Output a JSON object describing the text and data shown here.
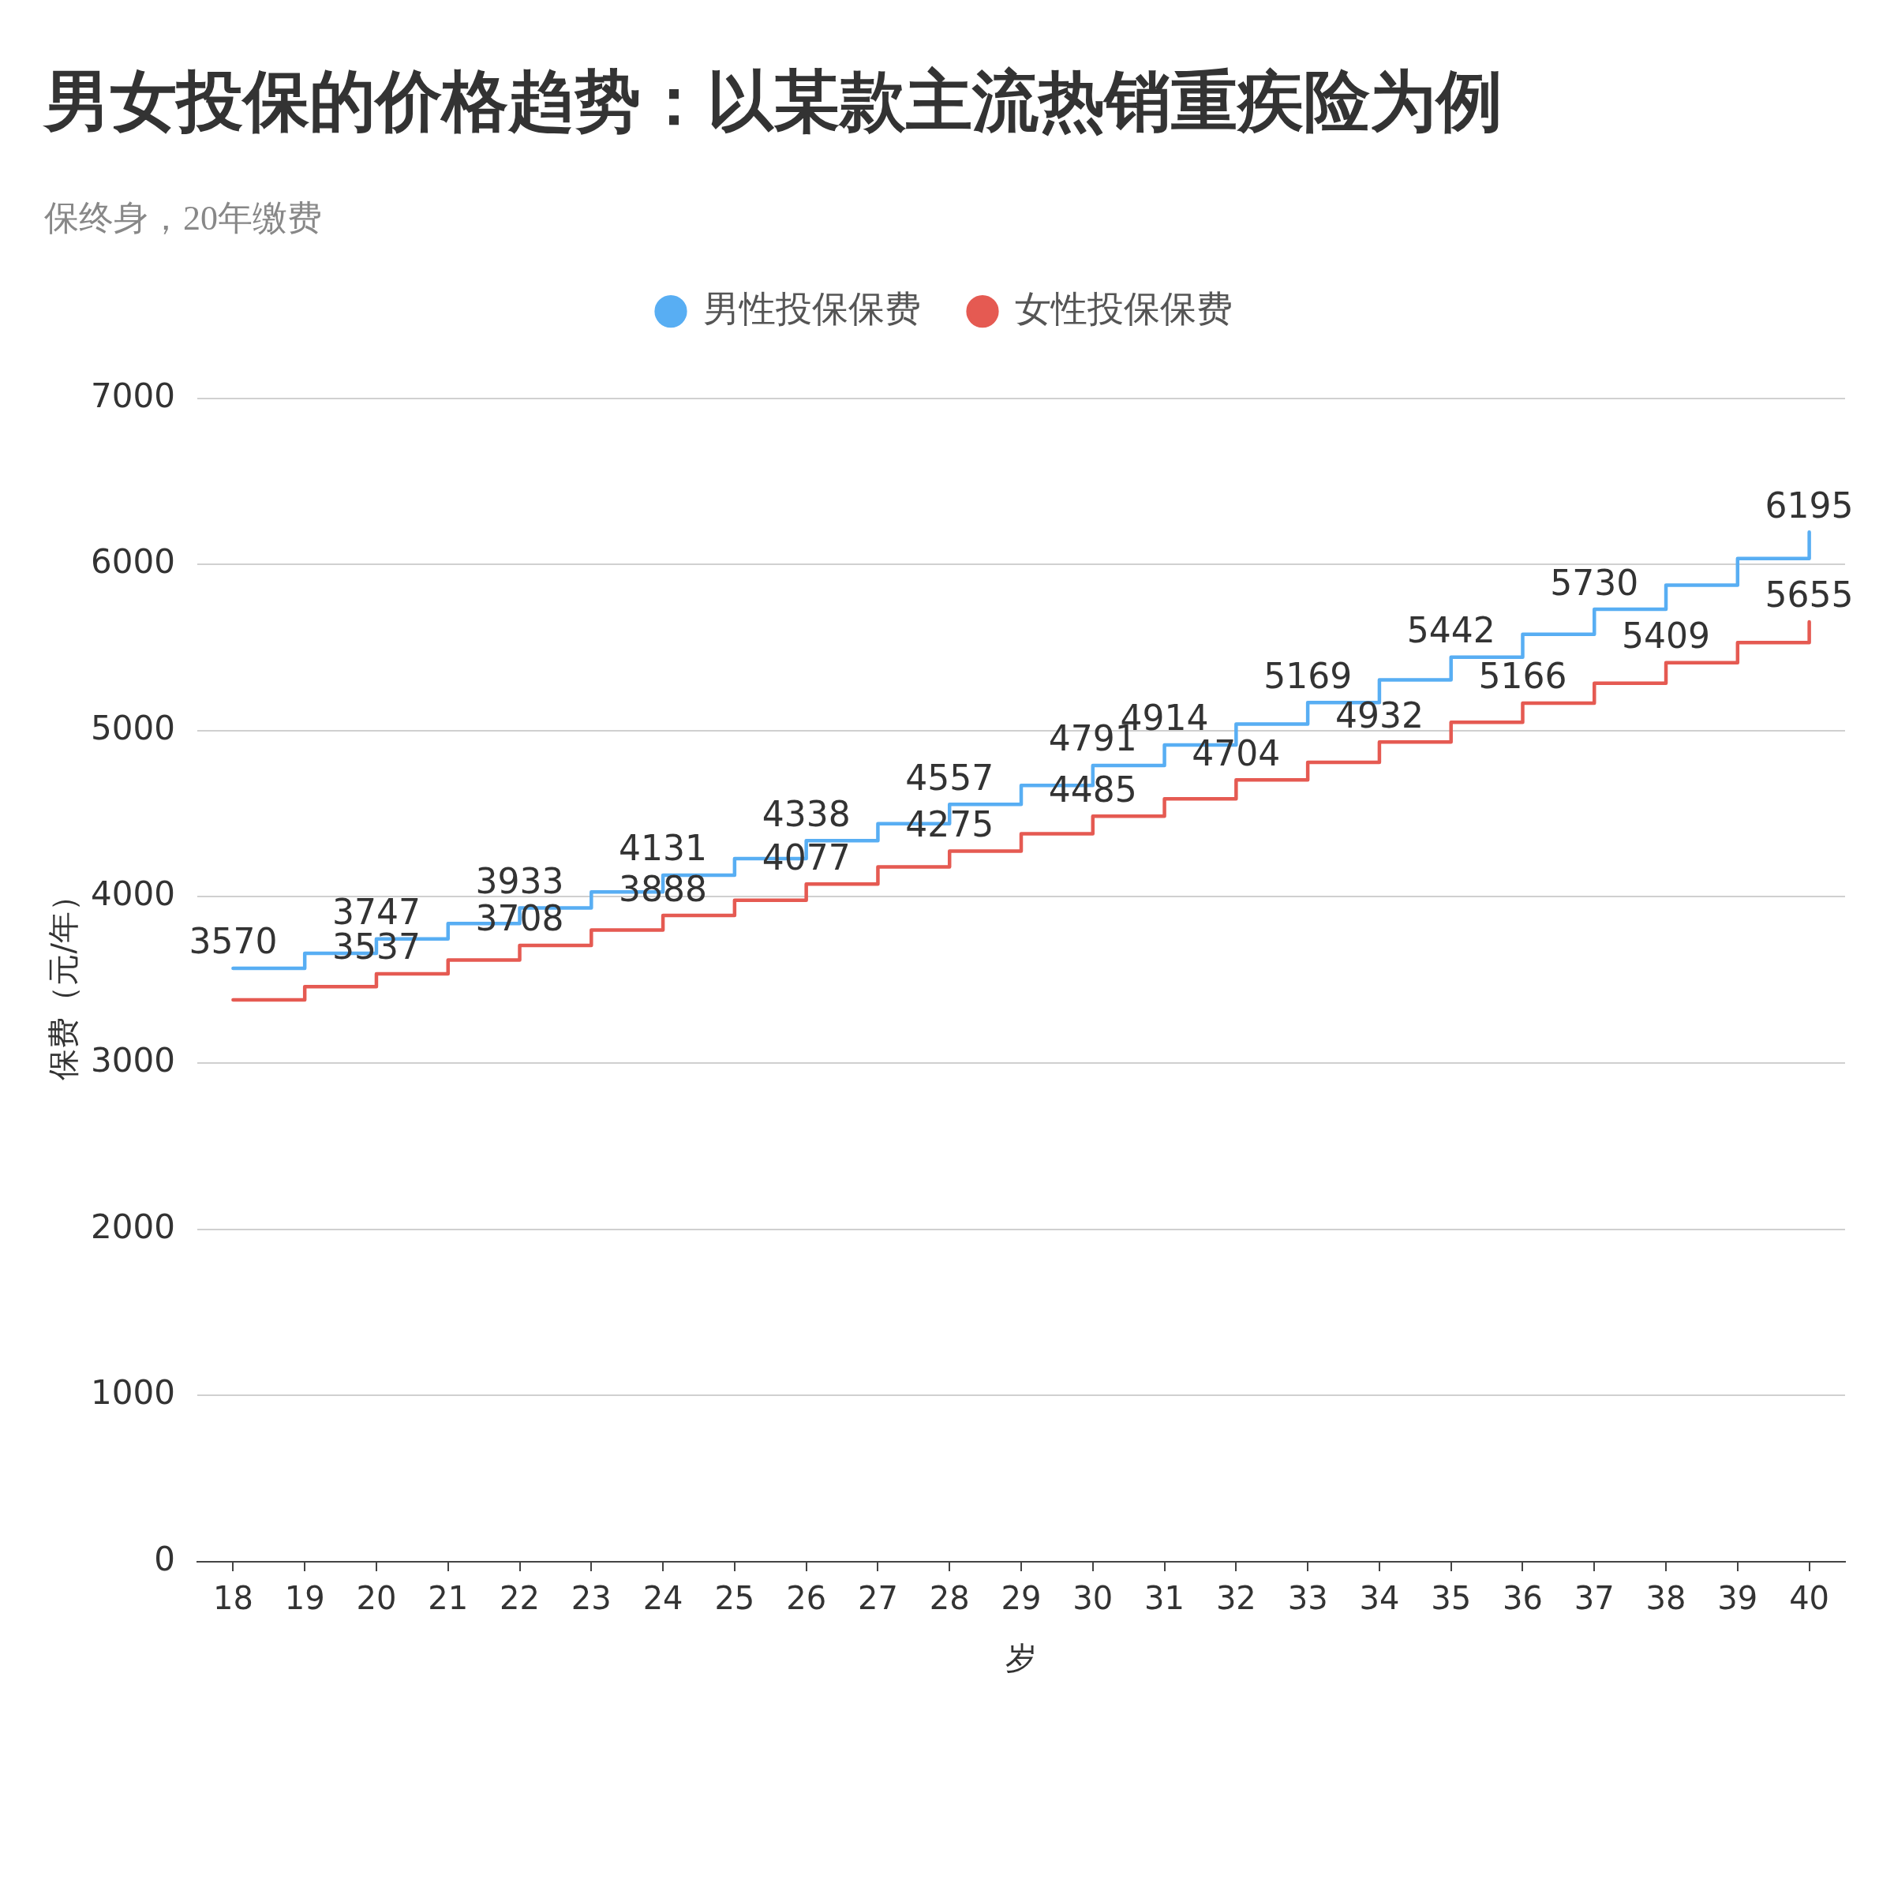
{
  "chart_data": {
    "type": "step",
    "title": "男女投保的价格趋势：以某款主流热销重疾险为例",
    "subtitle": "保终身，20年缴费",
    "xlabel": "岁",
    "ylabel": "保费（元/年）",
    "categories": [
      "18",
      "19",
      "20",
      "21",
      "22",
      "23",
      "24",
      "25",
      "26",
      "27",
      "28",
      "29",
      "30",
      "31",
      "32",
      "33",
      "34",
      "35",
      "36",
      "37",
      "38",
      "39",
      "40"
    ],
    "series": [
      {
        "name": "男性投保保费",
        "color": "#58aef3",
        "values": [
          3570,
          3660,
          3747,
          3840,
          3933,
          4030,
          4131,
          4230,
          4338,
          4440,
          4557,
          4670,
          4791,
          4914,
          5040,
          5169,
          5305,
          5442,
          5580,
          5730,
          5875,
          6035,
          6195
        ],
        "value_labels": [
          "3570",
          null,
          "3747",
          null,
          "3933",
          null,
          "4131",
          null,
          "4338",
          null,
          "4557",
          null,
          "4791",
          "4914",
          null,
          "5169",
          null,
          "5442",
          null,
          "5730",
          null,
          null,
          "6195"
        ]
      },
      {
        "name": "女性投保保费",
        "color": "#e55a52",
        "values": [
          3380,
          3460,
          3537,
          3620,
          3708,
          3800,
          3888,
          3980,
          4077,
          4180,
          4275,
          4380,
          4485,
          4590,
          4704,
          4810,
          4932,
          5050,
          5166,
          5285,
          5409,
          5530,
          5655
        ],
        "value_labels": [
          null,
          null,
          "3537",
          null,
          "3708",
          null,
          "3888",
          null,
          "4077",
          null,
          "4275",
          null,
          "4485",
          null,
          "4704",
          null,
          "4932",
          null,
          "5166",
          null,
          "5409",
          null,
          "5655"
        ]
      }
    ],
    "ylim": [
      0,
      7000
    ],
    "yticks": [
      0,
      1000,
      2000,
      3000,
      4000,
      5000,
      6000,
      7000
    ],
    "grid": "y",
    "legend": "top",
    "marker": "none",
    "line_style": "solid"
  }
}
